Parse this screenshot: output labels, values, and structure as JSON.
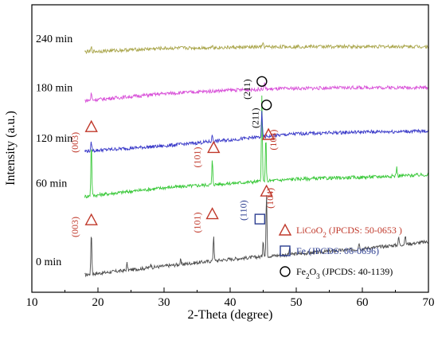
{
  "chart_data": {
    "type": "line",
    "xlabel": "2-Theta (degree)",
    "ylabel": "Intensity (a.u.)",
    "xlim": [
      10,
      70
    ],
    "xticks": [
      10,
      20,
      30,
      40,
      50,
      60,
      70
    ],
    "grid": false,
    "series": [
      {
        "name": "0 min",
        "color": "#4a4a4a",
        "baseline": [
          [
            18,
            0.1
          ],
          [
            30,
            0.2
          ],
          [
            40,
            0.28
          ],
          [
            50,
            0.34
          ],
          [
            60,
            0.4
          ],
          [
            70,
            0.48
          ]
        ],
        "peaks": [
          [
            19.0,
            0.5
          ],
          [
            24.4,
            0.08
          ],
          [
            28.0,
            0.05
          ],
          [
            32.5,
            0.05
          ],
          [
            37.5,
            0.3
          ],
          [
            45.0,
            0.2
          ],
          [
            45.5,
            0.75
          ],
          [
            49.0,
            0.08
          ],
          [
            59.5,
            0.08
          ],
          [
            65.5,
            0.09
          ],
          [
            66.5,
            0.1
          ]
        ]
      },
      {
        "name": "60 min",
        "color": "#38c838",
        "baseline": [
          [
            18,
            1.0
          ],
          [
            30,
            1.1
          ],
          [
            40,
            1.15
          ],
          [
            50,
            1.2
          ],
          [
            60,
            1.22
          ],
          [
            70,
            1.25
          ]
        ],
        "peaks": [
          [
            19.0,
            0.62
          ],
          [
            37.3,
            0.28
          ],
          [
            44.8,
            0.98
          ],
          [
            45.4,
            0.5
          ],
          [
            65.2,
            0.1
          ]
        ]
      },
      {
        "name": "120 min",
        "color": "#3838c8",
        "baseline": [
          [
            18,
            1.52
          ],
          [
            30,
            1.58
          ],
          [
            40,
            1.65
          ],
          [
            50,
            1.72
          ],
          [
            60,
            1.74
          ],
          [
            70,
            1.75
          ]
        ],
        "peaks": [
          [
            19.0,
            0.1
          ],
          [
            37.3,
            0.08
          ],
          [
            44.8,
            0.28
          ]
        ]
      },
      {
        "name": "180 min",
        "color": "#d84fd8",
        "baseline": [
          [
            18,
            2.1
          ],
          [
            30,
            2.18
          ],
          [
            40,
            2.22
          ],
          [
            50,
            2.24
          ],
          [
            60,
            2.25
          ],
          [
            70,
            2.25
          ]
        ],
        "peaks": [
          [
            19.0,
            0.08
          ],
          [
            45.2,
            0.08
          ]
        ]
      },
      {
        "name": "240 min",
        "color": "#a9a54a",
        "baseline": [
          [
            18,
            2.66
          ],
          [
            30,
            2.7
          ],
          [
            40,
            2.71
          ],
          [
            50,
            2.72
          ],
          [
            60,
            2.72
          ],
          [
            70,
            2.72
          ]
        ],
        "peaks": [
          [
            19.0,
            0.05
          ],
          [
            37.3,
            0.04
          ],
          [
            45.0,
            0.05
          ]
        ]
      }
    ],
    "annotations": [
      {
        "text": "(003)",
        "color": "#c0392b",
        "x": 17.0,
        "y": 1.62,
        "marker": "triangle",
        "mx": 19.0,
        "my": 1.8
      },
      {
        "text": "(101)",
        "color": "#c0392b",
        "x": 35.5,
        "y": 1.45,
        "marker": "triangle",
        "mx": 37.5,
        "my": 1.56
      },
      {
        "text": "(211)",
        "color": "#000000",
        "x": 43.0,
        "y": 2.23,
        "marker": "circle",
        "mx": 44.8,
        "my": 2.32
      },
      {
        "text": "(104)",
        "color": "#c0392b",
        "x": 47.0,
        "y": 1.65,
        "marker": "triangle",
        "mx": 45.8,
        "my": 1.71
      },
      {
        "text": "(211)",
        "color": "#000000",
        "x": 44.3,
        "y": 1.9,
        "marker": "circle",
        "mx": 45.5,
        "my": 2.05
      },
      {
        "text": "(003)",
        "color": "#c0392b",
        "x": 17.0,
        "y": 0.65,
        "marker": "triangle",
        "mx": 19.0,
        "my": 0.73
      },
      {
        "text": "(101)",
        "color": "#c0392b",
        "x": 35.5,
        "y": 0.7,
        "marker": "triangle",
        "mx": 37.3,
        "my": 0.8
      },
      {
        "text": "(110)",
        "color": "#2c3e90",
        "x": 42.5,
        "y": 0.84,
        "marker": "square",
        "mx": 44.5,
        "my": 0.74
      },
      {
        "text": "(104)",
        "color": "#c0392b",
        "x": 46.5,
        "y": 0.98,
        "marker": "triangle",
        "mx": 45.5,
        "my": 1.06
      }
    ],
    "legend": {
      "placement": "bottom-right",
      "entries": [
        {
          "marker": "triangle",
          "color": "#c0392b",
          "main": "LiCoO",
          "sub": "2",
          "tail": " (JPCDS: 50-0653 )"
        },
        {
          "marker": "square",
          "color": "#2c3e90",
          "main": "Fe",
          "sub": "",
          "tail": " (JPCDS: 06-0696)"
        },
        {
          "marker": "circle",
          "color": "#000000",
          "main": "Fe",
          "sub": "2",
          "main2": "O",
          "sub2": "3",
          "tail": " (JPCDS: 40-1139)"
        }
      ]
    }
  }
}
